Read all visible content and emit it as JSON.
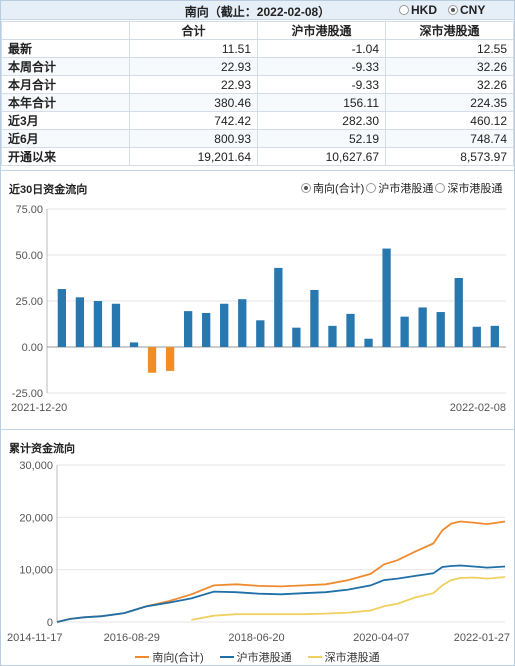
{
  "header": {
    "title": "南向（截止：2022-02-08）",
    "currency_options": [
      {
        "label": "HKD",
        "selected": false
      },
      {
        "label": "CNY",
        "selected": true
      }
    ]
  },
  "summary_table": {
    "columns": [
      "",
      "合计",
      "沪市港股通",
      "深市港股通"
    ],
    "rows": [
      {
        "label": "最新",
        "values": [
          "11.51",
          "-1.04",
          "12.55"
        ]
      },
      {
        "label": "本周合计",
        "values": [
          "22.93",
          "-9.33",
          "32.26"
        ]
      },
      {
        "label": "本月合计",
        "values": [
          "22.93",
          "-9.33",
          "32.26"
        ]
      },
      {
        "label": "本年合计",
        "values": [
          "380.46",
          "156.11",
          "224.35"
        ]
      },
      {
        "label": "近3月",
        "values": [
          "742.42",
          "282.30",
          "460.12"
        ]
      },
      {
        "label": "近6月",
        "values": [
          "800.93",
          "52.19",
          "748.74"
        ]
      },
      {
        "label": "开通以来",
        "values": [
          "19,201.64",
          "10,627.67",
          "8,573.97"
        ]
      }
    ]
  },
  "flow_section": {
    "title": "近30日资金流向",
    "options": [
      {
        "label": "南向(合计)",
        "selected": true
      },
      {
        "label": "沪市港股通",
        "selected": false
      },
      {
        "label": "深市港股通",
        "selected": false
      }
    ]
  },
  "cumulative_section": {
    "title": "累计资金流向"
  },
  "chart_data": [
    {
      "type": "bar",
      "title": "",
      "x_start_label": "2021-12-20",
      "x_end_label": "2022-02-08",
      "ylim": [
        -25,
        75
      ],
      "yticks": [
        "75.00",
        "50.00",
        "25.00",
        "0.00",
        "-25.00"
      ],
      "ytick_values": [
        75,
        50,
        25,
        0,
        -25
      ],
      "positive_color": "#2878b0",
      "negative_color": "#f08c2a",
      "values": [
        31.5,
        27,
        25,
        23.5,
        2.5,
        -14,
        -13,
        19.5,
        18.5,
        23.5,
        26,
        14.5,
        43,
        10.5,
        31,
        11.5,
        18,
        4.5,
        53.5,
        16.5,
        21.5,
        19,
        37.5,
        11,
        11.5
      ]
    },
    {
      "type": "line",
      "title": "",
      "xlabels": [
        "2014-11-17",
        "2016-08-29",
        "2018-06-20",
        "2020-04-07",
        "2022-01-27"
      ],
      "ylim": [
        0,
        30000
      ],
      "yticks": [
        "30,000",
        "20,000",
        "10,000",
        "0"
      ],
      "ytick_values": [
        30000,
        20000,
        10000,
        0
      ],
      "x": [
        0,
        0.03,
        0.06,
        0.1,
        0.15,
        0.2,
        0.25,
        0.3,
        0.35,
        0.4,
        0.45,
        0.5,
        0.55,
        0.6,
        0.65,
        0.7,
        0.73,
        0.76,
        0.8,
        0.84,
        0.86,
        0.88,
        0.9,
        0.93,
        0.96,
        1.0
      ],
      "series": [
        {
          "name": "南向(合计)",
          "color": "#ef8a2e",
          "values": [
            0,
            600,
            900,
            1100,
            1700,
            3000,
            4000,
            5300,
            7000,
            7200,
            6900,
            6800,
            7000,
            7200,
            8000,
            9200,
            11000,
            11800,
            13500,
            15000,
            17500,
            18800,
            19200,
            19000,
            18700,
            19200
          ]
        },
        {
          "name": "沪市港股通",
          "color": "#1f6fa8",
          "values": [
            0,
            600,
            900,
            1100,
            1700,
            3000,
            3700,
            4500,
            5800,
            5700,
            5400,
            5300,
            5500,
            5700,
            6200,
            7000,
            8000,
            8300,
            8800,
            9300,
            10500,
            10700,
            10800,
            10600,
            10400,
            10600
          ]
        },
        {
          "name": "深市港股通",
          "color": "#f0d060",
          "values": [
            null,
            null,
            null,
            null,
            null,
            null,
            null,
            400,
            1200,
            1500,
            1500,
            1500,
            1500,
            1600,
            1800,
            2200,
            3000,
            3500,
            4700,
            5500,
            7000,
            8000,
            8400,
            8500,
            8300,
            8600
          ]
        }
      ]
    }
  ]
}
